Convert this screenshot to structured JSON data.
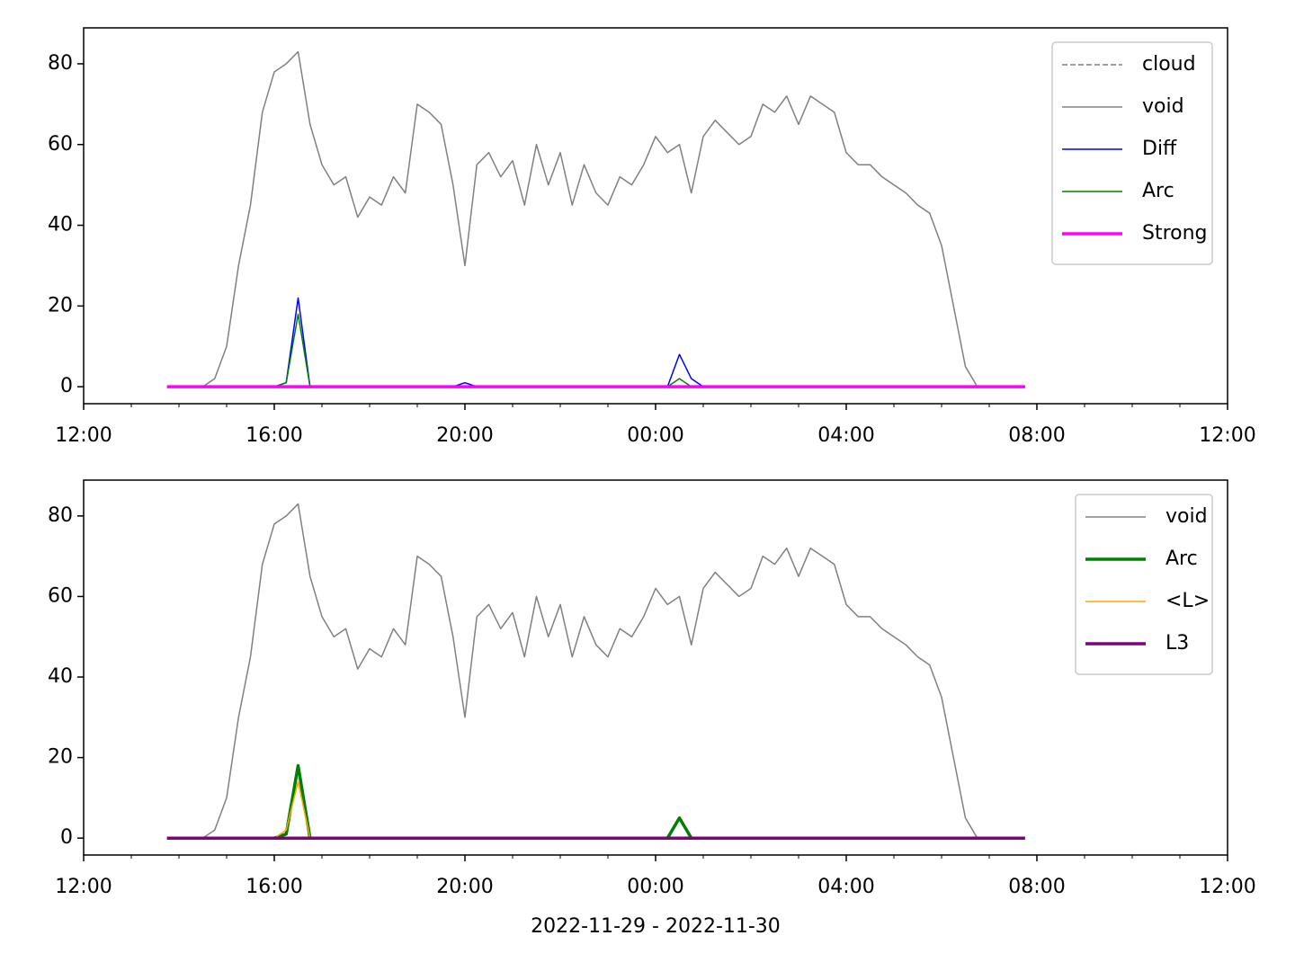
{
  "chart_data": [
    {
      "type": "line",
      "x": [
        13.75,
        14,
        14.25,
        14.5,
        14.75,
        15,
        15.25,
        15.5,
        15.75,
        16,
        16.25,
        16.5,
        16.75,
        17,
        17.25,
        17.5,
        17.75,
        18,
        18.25,
        18.5,
        18.75,
        19,
        19.25,
        19.5,
        19.75,
        20,
        20.25,
        20.5,
        20.75,
        21,
        21.25,
        21.5,
        21.75,
        22,
        22.25,
        22.5,
        22.75,
        23,
        23.25,
        23.5,
        23.75,
        24,
        24.25,
        24.5,
        24.75,
        25,
        25.25,
        25.5,
        25.75,
        26,
        26.25,
        26.5,
        26.75,
        27,
        27.25,
        27.5,
        27.75,
        28,
        28.25,
        28.5,
        28.75,
        29,
        29.25,
        29.5,
        29.75,
        30,
        30.25,
        30.5,
        30.75,
        31,
        31.25,
        31.5,
        31.75
      ],
      "xlim": [
        12,
        36
      ],
      "xticks": [
        {
          "value": 12,
          "label": "12:00"
        },
        {
          "value": 16,
          "label": "16:00"
        },
        {
          "value": 20,
          "label": "20:00"
        },
        {
          "value": 24,
          "label": "00:00"
        },
        {
          "value": 28,
          "label": "04:00"
        },
        {
          "value": 32,
          "label": "08:00"
        },
        {
          "value": 36,
          "label": "12:00"
        }
      ],
      "xminorticks": [
        13,
        14,
        15,
        17,
        18,
        19,
        21,
        22,
        23,
        25,
        26,
        27,
        29,
        30,
        31,
        33,
        34,
        35
      ],
      "ylim": [
        -4.2,
        88.9
      ],
      "yticks": [
        0,
        20,
        40,
        60,
        80
      ],
      "legend": "upper right",
      "series": [
        {
          "name": "cloud",
          "color": "#808080",
          "width": 1.5,
          "style": "dashed",
          "values": [
            null,
            null,
            null,
            null,
            null,
            null,
            null,
            null,
            null,
            null,
            null,
            null,
            null,
            null,
            null,
            null,
            null,
            null,
            null,
            null,
            null,
            null,
            null,
            null,
            null,
            null,
            null,
            null,
            null,
            null,
            null,
            null,
            null,
            null,
            null,
            null,
            null,
            null,
            null,
            null,
            null,
            null,
            null,
            null,
            null,
            null,
            null,
            null,
            null,
            null,
            null,
            null,
            null,
            null,
            null,
            null,
            null,
            null,
            null,
            null,
            null,
            null,
            null,
            null,
            null,
            null,
            null,
            null,
            null,
            null,
            null,
            null,
            null
          ]
        },
        {
          "name": "void",
          "color": "#808080",
          "width": 1.5,
          "values": [
            0,
            0,
            0,
            0,
            2,
            10,
            30,
            45,
            68,
            78,
            80,
            83,
            65,
            55,
            50,
            52,
            42,
            47,
            45,
            52,
            48,
            70,
            68,
            65,
            50,
            30,
            55,
            58,
            52,
            56,
            45,
            60,
            50,
            58,
            45,
            55,
            48,
            45,
            52,
            50,
            55,
            62,
            58,
            60,
            48,
            62,
            66,
            63,
            60,
            62,
            70,
            68,
            72,
            65,
            72,
            70,
            68,
            58,
            55,
            55,
            52,
            50,
            48,
            45,
            43,
            35,
            20,
            5,
            0,
            0,
            0,
            0,
            0
          ]
        },
        {
          "name": "Diff",
          "color": "#0000ff",
          "width": 1.5,
          "values": [
            0,
            0,
            0,
            0,
            0,
            0,
            0,
            0,
            0,
            0,
            1,
            22,
            0,
            0,
            0,
            0,
            0,
            0,
            0,
            0,
            0,
            0,
            0,
            0,
            0,
            1,
            0,
            0,
            0,
            0,
            0,
            0,
            0,
            0,
            0,
            0,
            0,
            0,
            0,
            0,
            0,
            0,
            0,
            8,
            2,
            0,
            0,
            0,
            0,
            0,
            0,
            0,
            0,
            0,
            0,
            0,
            0,
            0,
            0,
            0,
            0,
            0,
            0,
            0,
            0,
            0,
            0,
            0,
            0,
            0,
            0,
            0,
            0
          ]
        },
        {
          "name": "Arc",
          "color": "#008000",
          "width": 1.5,
          "values": [
            0,
            0,
            0,
            0,
            0,
            0,
            0,
            0,
            0,
            0,
            1,
            18,
            0,
            0,
            0,
            0,
            0,
            0,
            0,
            0,
            0,
            0,
            0,
            0,
            0,
            0,
            0,
            0,
            0,
            0,
            0,
            0,
            0,
            0,
            0,
            0,
            0,
            0,
            0,
            0,
            0,
            0,
            0,
            2,
            0,
            0,
            0,
            0,
            0,
            0,
            0,
            0,
            0,
            0,
            0,
            0,
            0,
            0,
            0,
            0,
            0,
            0,
            0,
            0,
            0,
            0,
            0,
            0,
            0,
            0,
            0,
            0,
            0
          ]
        },
        {
          "name": "Strong",
          "color": "#ff00ff",
          "width": 3.5,
          "values": [
            0,
            0,
            0,
            0,
            0,
            0,
            0,
            0,
            0,
            0,
            0,
            0,
            0,
            0,
            0,
            0,
            0,
            0,
            0,
            0,
            0,
            0,
            0,
            0,
            0,
            0,
            0,
            0,
            0,
            0,
            0,
            0,
            0,
            0,
            0,
            0,
            0,
            0,
            0,
            0,
            0,
            0,
            0,
            0,
            0,
            0,
            0,
            0,
            0,
            0,
            0,
            0,
            0,
            0,
            0,
            0,
            0,
            0,
            0,
            0,
            0,
            0,
            0,
            0,
            0,
            0,
            0,
            0,
            0,
            0,
            0,
            0,
            0
          ]
        }
      ]
    },
    {
      "type": "line",
      "x": [
        13.75,
        14,
        14.25,
        14.5,
        14.75,
        15,
        15.25,
        15.5,
        15.75,
        16,
        16.25,
        16.5,
        16.75,
        17,
        17.25,
        17.5,
        17.75,
        18,
        18.25,
        18.5,
        18.75,
        19,
        19.25,
        19.5,
        19.75,
        20,
        20.25,
        20.5,
        20.75,
        21,
        21.25,
        21.5,
        21.75,
        22,
        22.25,
        22.5,
        22.75,
        23,
        23.25,
        23.5,
        23.75,
        24,
        24.25,
        24.5,
        24.75,
        25,
        25.25,
        25.5,
        25.75,
        26,
        26.25,
        26.5,
        26.75,
        27,
        27.25,
        27.5,
        27.75,
        28,
        28.25,
        28.5,
        28.75,
        29,
        29.25,
        29.5,
        29.75,
        30,
        30.25,
        30.5,
        30.75,
        31,
        31.25,
        31.5,
        31.75
      ],
      "xlim": [
        12,
        36
      ],
      "xticks": [
        {
          "value": 12,
          "label": "12:00"
        },
        {
          "value": 16,
          "label": "16:00"
        },
        {
          "value": 20,
          "label": "20:00"
        },
        {
          "value": 24,
          "label": "00:00"
        },
        {
          "value": 28,
          "label": "04:00"
        },
        {
          "value": 32,
          "label": "08:00"
        },
        {
          "value": 36,
          "label": "12:00"
        }
      ],
      "xminorticks": [
        13,
        14,
        15,
        17,
        18,
        19,
        21,
        22,
        23,
        25,
        26,
        27,
        29,
        30,
        31,
        33,
        34,
        35
      ],
      "xlabel": "2022-11-29 - 2022-11-30",
      "ylim": [
        -4.2,
        88.9
      ],
      "yticks": [
        0,
        20,
        40,
        60,
        80
      ],
      "legend": "upper right",
      "series": [
        {
          "name": "void",
          "color": "#808080",
          "width": 1.5,
          "values": [
            0,
            0,
            0,
            0,
            2,
            10,
            30,
            45,
            68,
            78,
            80,
            83,
            65,
            55,
            50,
            52,
            42,
            47,
            45,
            52,
            48,
            70,
            68,
            65,
            50,
            30,
            55,
            58,
            52,
            56,
            45,
            60,
            50,
            58,
            45,
            55,
            48,
            45,
            52,
            50,
            55,
            62,
            58,
            60,
            48,
            62,
            66,
            63,
            60,
            62,
            70,
            68,
            72,
            65,
            72,
            70,
            68,
            58,
            55,
            55,
            52,
            50,
            48,
            45,
            43,
            35,
            20,
            5,
            0,
            0,
            0,
            0,
            0
          ]
        },
        {
          "name": "Arc",
          "color": "#008000",
          "width": 3.5,
          "values": [
            0,
            0,
            0,
            0,
            0,
            0,
            0,
            0,
            0,
            0,
            1,
            18,
            0,
            0,
            0,
            0,
            0,
            0,
            0,
            0,
            0,
            0,
            0,
            0,
            0,
            0,
            0,
            0,
            0,
            0,
            0,
            0,
            0,
            0,
            0,
            0,
            0,
            0,
            0,
            0,
            0,
            0,
            0,
            5,
            0,
            0,
            0,
            0,
            0,
            0,
            0,
            0,
            0,
            0,
            0,
            0,
            0,
            0,
            0,
            0,
            0,
            0,
            0,
            0,
            0,
            0,
            0,
            0,
            0,
            0,
            0,
            0,
            0
          ]
        },
        {
          "name": "<L>",
          "color": "#ffa500",
          "width": 1.5,
          "values": [
            0,
            0,
            0,
            0,
            0,
            0,
            0,
            0,
            0,
            0,
            2,
            14,
            0,
            0,
            0,
            0,
            0,
            0,
            0,
            0,
            0,
            0,
            0,
            0,
            0,
            0,
            0,
            0,
            0,
            0,
            0,
            0,
            0,
            0,
            0,
            0,
            0,
            0,
            0,
            0,
            0,
            0,
            0,
            0,
            0,
            0,
            0,
            0,
            0,
            0,
            0,
            0,
            0,
            0,
            0,
            0,
            0,
            0,
            0,
            0,
            0,
            0,
            0,
            0,
            0,
            0,
            0,
            0,
            0,
            0,
            0,
            0,
            0
          ]
        },
        {
          "name": "L3",
          "color": "#800080",
          "width": 3.5,
          "values": [
            0,
            0,
            0,
            0,
            0,
            0,
            0,
            0,
            0,
            0,
            0,
            0,
            0,
            0,
            0,
            0,
            0,
            0,
            0,
            0,
            0,
            0,
            0,
            0,
            0,
            0,
            0,
            0,
            0,
            0,
            0,
            0,
            0,
            0,
            0,
            0,
            0,
            0,
            0,
            0,
            0,
            0,
            0,
            0,
            0,
            0,
            0,
            0,
            0,
            0,
            0,
            0,
            0,
            0,
            0,
            0,
            0,
            0,
            0,
            0,
            0,
            0,
            0,
            0,
            0,
            0,
            0,
            0,
            0,
            0,
            0,
            0,
            0
          ]
        }
      ]
    }
  ]
}
